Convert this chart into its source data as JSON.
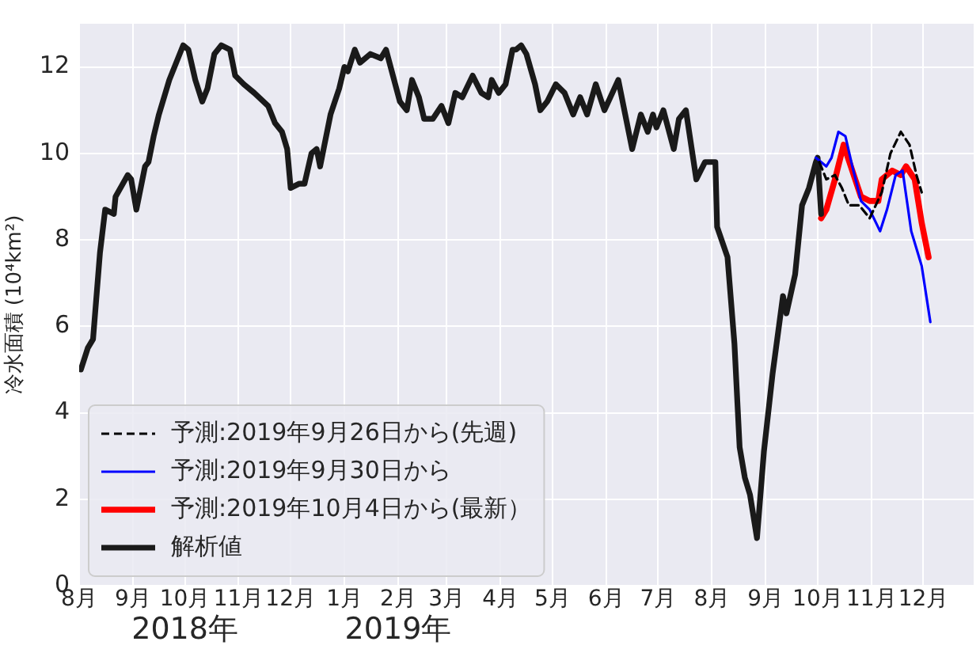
{
  "chart_data": {
    "type": "line",
    "ylabel": "冷水面積 (10⁴km²)",
    "xlim": [
      "2018-08-01",
      "2019-12-30"
    ],
    "xticks": [
      {
        "value": "2018-08-01",
        "label": "8月"
      },
      {
        "value": "2018-09-01",
        "label": "9月"
      },
      {
        "value": "2018-10-01",
        "label": "10月\n2018年"
      },
      {
        "value": "2018-11-01",
        "label": "11月"
      },
      {
        "value": "2018-12-01",
        "label": "12月"
      },
      {
        "value": "2019-01-01",
        "label": "1月"
      },
      {
        "value": "2019-02-01",
        "label": "2月\n2019年"
      },
      {
        "value": "2019-03-01",
        "label": "3月"
      },
      {
        "value": "2019-04-01",
        "label": "4月"
      },
      {
        "value": "2019-05-01",
        "label": "5月"
      },
      {
        "value": "2019-06-01",
        "label": "6月"
      },
      {
        "value": "2019-07-01",
        "label": "7月"
      },
      {
        "value": "2019-08-01",
        "label": "8月"
      },
      {
        "value": "2019-09-01",
        "label": "9月"
      },
      {
        "value": "2019-10-01",
        "label": "10月"
      },
      {
        "value": "2019-11-01",
        "label": "11月"
      },
      {
        "value": "2019-12-01",
        "label": "12月"
      }
    ],
    "ylim": [
      0,
      13
    ],
    "yticks": [
      0,
      2,
      4,
      6,
      8,
      10,
      12
    ],
    "grid": true,
    "legend": "bottom left",
    "marker": "none",
    "series": [
      {
        "name": "予測:2019年9月26日から(先週)",
        "color": "#000000",
        "line_style": "dashed",
        "x": [
          "2019-10-02",
          "2019-10-06",
          "2019-10-11",
          "2019-10-15",
          "2019-10-19",
          "2019-10-25",
          "2019-10-31",
          "2019-11-07",
          "2019-11-12",
          "2019-11-18",
          "2019-11-23",
          "2019-11-27",
          "2019-11-30"
        ],
        "values": [
          9.8,
          9.4,
          9.5,
          9.2,
          8.8,
          8.8,
          8.5,
          9.1,
          10.0,
          10.5,
          10.2,
          9.5,
          9.1
        ]
      },
      {
        "name": "予測:2019年9月30日から",
        "color": "#0000ff",
        "x": [
          "2019-09-30",
          "2019-10-06",
          "2019-10-09",
          "2019-10-13",
          "2019-10-17",
          "2019-10-21",
          "2019-10-26",
          "2019-10-31",
          "2019-11-06",
          "2019-11-10",
          "2019-11-15",
          "2019-11-19",
          "2019-11-24",
          "2019-11-27",
          "2019-11-30",
          "2019-12-05"
        ],
        "values": [
          9.9,
          9.7,
          9.9,
          10.5,
          10.4,
          9.7,
          8.9,
          8.7,
          8.2,
          8.7,
          9.5,
          9.6,
          8.2,
          7.8,
          7.4,
          6.1
        ]
      },
      {
        "name": "予測:2019年10月4日から(最新）",
        "color": "#ff0000",
        "x": [
          "2019-10-03",
          "2019-10-06",
          "2019-10-11",
          "2019-10-16",
          "2019-10-21",
          "2019-10-26",
          "2019-10-31",
          "2019-11-05",
          "2019-11-07",
          "2019-11-13",
          "2019-11-18",
          "2019-11-21",
          "2019-11-26",
          "2019-11-30",
          "2019-12-04"
        ],
        "values": [
          8.5,
          8.7,
          9.4,
          10.2,
          9.6,
          9.0,
          8.9,
          8.9,
          9.4,
          9.6,
          9.5,
          9.7,
          9.4,
          8.4,
          7.6
        ]
      },
      {
        "name": "解析値",
        "color": "#1a1a1a",
        "x": [
          "2018-08-02",
          "2018-08-06",
          "2018-08-09",
          "2018-08-13",
          "2018-08-16",
          "2018-08-21",
          "2018-08-22",
          "2018-08-29",
          "2018-08-31",
          "2018-09-03",
          "2018-09-08",
          "2018-09-10",
          "2018-09-13",
          "2018-09-16",
          "2018-09-22",
          "2018-09-29",
          "2018-09-30",
          "2018-10-03",
          "2018-10-07",
          "2018-10-11",
          "2018-10-14",
          "2018-10-18",
          "2018-10-22",
          "2018-10-27",
          "2018-10-30",
          "2018-11-04",
          "2018-11-10",
          "2018-11-18",
          "2018-11-22",
          "2018-11-26",
          "2018-11-29",
          "2018-12-01",
          "2018-12-06",
          "2018-12-09",
          "2018-12-13",
          "2018-12-16",
          "2018-12-18",
          "2018-12-20",
          "2018-12-24",
          "2018-12-29",
          "2019-01-01",
          "2019-01-03",
          "2019-01-07",
          "2019-01-10",
          "2019-01-16",
          "2019-01-22",
          "2019-01-25",
          "2019-01-29",
          "2019-02-02",
          "2019-02-06",
          "2019-02-09",
          "2019-02-13",
          "2019-02-16",
          "2019-02-21",
          "2019-02-26",
          "2019-03-02",
          "2019-03-06",
          "2019-03-10",
          "2019-03-16",
          "2019-03-21",
          "2019-03-25",
          "2019-03-27",
          "2019-03-31",
          "2019-04-04",
          "2019-04-08",
          "2019-04-10",
          "2019-04-13",
          "2019-04-16",
          "2019-04-21",
          "2019-04-24",
          "2019-04-28",
          "2019-05-03",
          "2019-05-08",
          "2019-05-13",
          "2019-05-17",
          "2019-05-21",
          "2019-05-26",
          "2019-05-31",
          "2019-06-08",
          "2019-06-12",
          "2019-06-16",
          "2019-06-21",
          "2019-06-25",
          "2019-06-28",
          "2019-06-30",
          "2019-07-04",
          "2019-07-10",
          "2019-07-13",
          "2019-07-17",
          "2019-07-23",
          "2019-07-28",
          "2019-08-03",
          "2019-08-04",
          "2019-08-10",
          "2019-08-14",
          "2019-08-17",
          "2019-08-20",
          "2019-08-23",
          "2019-08-27",
          "2019-08-31",
          "2019-09-05",
          "2019-09-11",
          "2019-09-13",
          "2019-09-18",
          "2019-09-22",
          "2019-09-26",
          "2019-09-30",
          "2019-10-01",
          "2019-10-03"
        ],
        "values": [
          5.0,
          5.5,
          5.7,
          7.7,
          8.7,
          8.6,
          9.0,
          9.5,
          9.4,
          8.7,
          9.7,
          9.8,
          10.4,
          10.9,
          11.7,
          12.4,
          12.5,
          12.4,
          11.7,
          11.2,
          11.5,
          12.3,
          12.5,
          12.4,
          11.8,
          11.6,
          11.4,
          11.1,
          10.7,
          10.5,
          10.1,
          9.2,
          9.3,
          9.3,
          10.0,
          10.1,
          9.7,
          10.1,
          10.9,
          11.5,
          12.0,
          11.9,
          12.4,
          12.1,
          12.3,
          12.2,
          12.4,
          11.8,
          11.2,
          11.0,
          11.7,
          11.3,
          10.8,
          10.8,
          11.1,
          10.7,
          11.4,
          11.3,
          11.8,
          11.4,
          11.3,
          11.7,
          11.4,
          11.6,
          12.4,
          12.4,
          12.5,
          12.3,
          11.6,
          11.0,
          11.2,
          11.6,
          11.4,
          10.9,
          11.3,
          10.9,
          11.6,
          11.0,
          11.7,
          10.9,
          10.1,
          10.9,
          10.5,
          10.9,
          10.6,
          11.0,
          10.1,
          10.8,
          11.0,
          9.4,
          9.8,
          9.8,
          8.3,
          7.6,
          5.6,
          3.2,
          2.5,
          2.1,
          1.1,
          3.1,
          4.9,
          6.7,
          6.3,
          7.2,
          8.8,
          9.2,
          9.8,
          9.9,
          8.6
        ]
      }
    ]
  }
}
